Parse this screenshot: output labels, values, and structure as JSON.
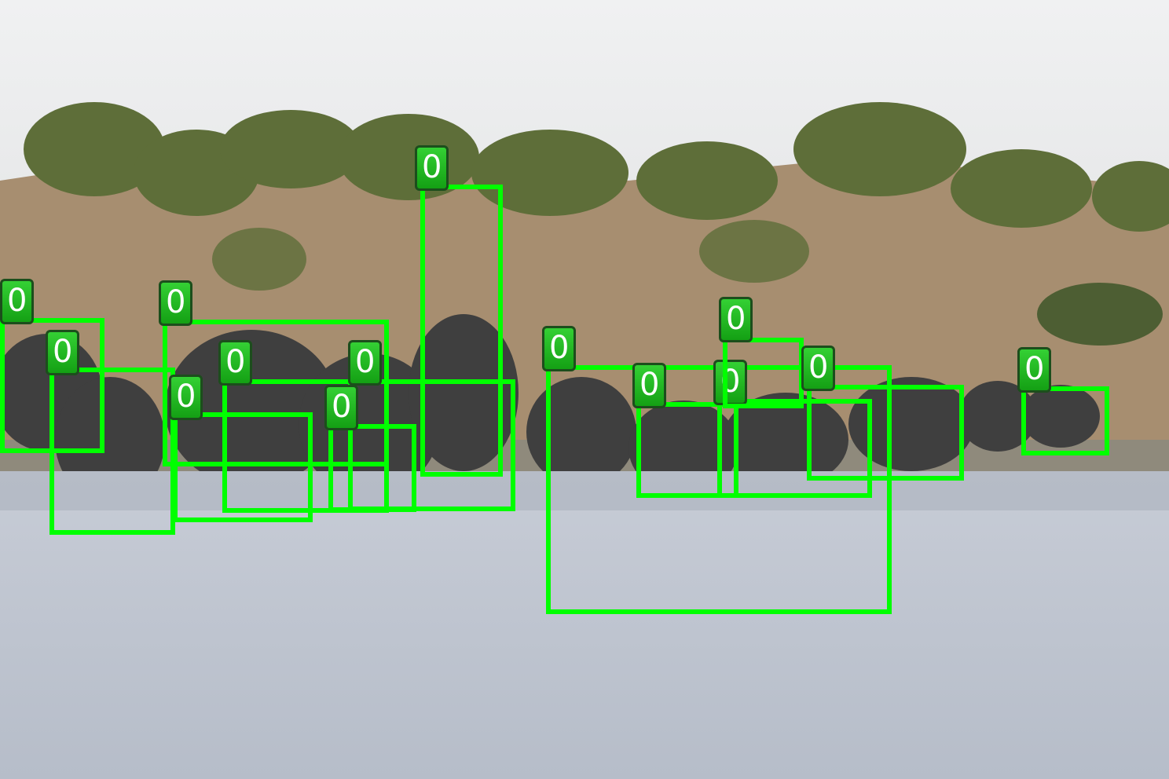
{
  "image": {
    "description_colors": {
      "sky": "#ecedee",
      "hill": "#a78e70",
      "trees": "#5e6e39",
      "water": "#bcc3cf",
      "elephants": "#3f3f3f",
      "box": "#00ff00",
      "tag": "#20b020"
    }
  },
  "detections": [
    {
      "label": "0"
    },
    {
      "label": "0"
    },
    {
      "label": "0"
    },
    {
      "label": "0"
    },
    {
      "label": "0"
    },
    {
      "label": "0"
    },
    {
      "label": "0"
    },
    {
      "label": "0"
    },
    {
      "label": "0"
    },
    {
      "label": "0"
    },
    {
      "label": "0"
    },
    {
      "label": "0"
    },
    {
      "label": "0"
    },
    {
      "label": "0"
    },
    {
      "label": "0"
    },
    {
      "label": "0"
    }
  ]
}
